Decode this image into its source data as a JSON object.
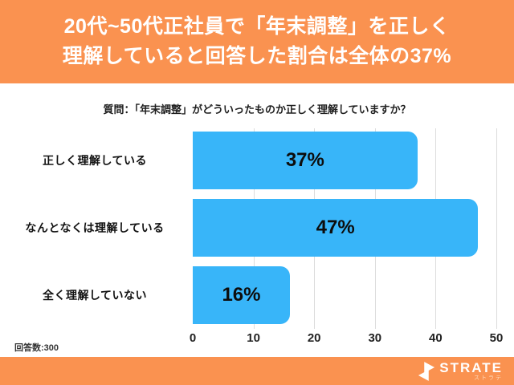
{
  "header": {
    "title_lines": [
      "20代~50代正社員で「年末調整」を正しく",
      "理解していると回答した割合は全体の37%"
    ]
  },
  "question": "質問：「年末調整」がどういったものか正しく理解していますか？",
  "chart_data": {
    "type": "bar",
    "orientation": "horizontal",
    "categories": [
      "正しく理解している",
      "なんとなくは理解している",
      "全く理解していない"
    ],
    "values": [
      37,
      47,
      16
    ],
    "value_labels": [
      "37%",
      "47%",
      "16%"
    ],
    "xlim": [
      0,
      50
    ],
    "xticks": [
      0,
      10,
      20,
      30,
      40,
      50
    ],
    "grid": true,
    "bar_color": "#38b5f9"
  },
  "footnote": "回答数:300",
  "footer": {
    "brand": "STRATE",
    "brand_sub": "ストラテ"
  },
  "colors": {
    "accent_orange": "#fa9250",
    "bar_blue": "#38b5f9",
    "grid_gray": "#dcdcdc",
    "text_dark": "#1f1f1f"
  }
}
